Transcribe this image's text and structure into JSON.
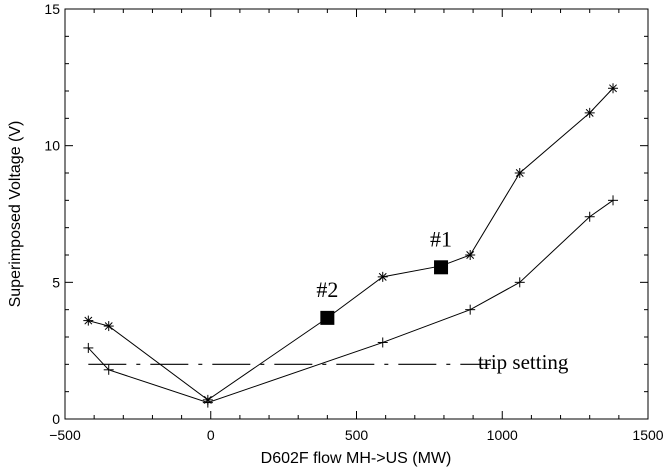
{
  "chart_data": {
    "type": "line",
    "xlabel": "D602F flow MH->US (MW)",
    "ylabel": "Superimposed Voltage (V)",
    "xlim": [
      -500,
      1500
    ],
    "ylim": [
      0,
      15
    ],
    "xticks": [
      -500,
      0,
      500,
      1000,
      1500
    ],
    "yticks": [
      0,
      5,
      10,
      15
    ],
    "grid": false,
    "series": [
      {
        "marker": "asterisk",
        "x": [
          -420,
          -350,
          -10,
          400,
          590,
          790,
          890,
          1060,
          1300,
          1380
        ],
        "y": [
          3.6,
          3.4,
          0.7,
          3.7,
          5.2,
          5.6,
          6.0,
          9.0,
          11.2,
          12.1
        ]
      },
      {
        "marker": "plus",
        "x": [
          -420,
          -350,
          -10,
          590,
          890,
          1060,
          1300,
          1380
        ],
        "y": [
          2.6,
          1.8,
          0.6,
          2.8,
          4.0,
          5.0,
          7.4,
          8.0
        ]
      }
    ],
    "highlighted_points": [
      {
        "label": "#1",
        "x": 790,
        "y": 5.55
      },
      {
        "label": "#2",
        "x": 400,
        "y": 3.7
      }
    ],
    "reference_line": {
      "label": "trip setting",
      "y": 2.0,
      "x_start": -420,
      "x_end": 960,
      "style": "dash-dot"
    }
  }
}
